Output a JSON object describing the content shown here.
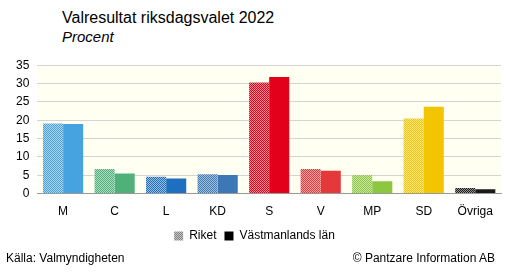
{
  "chart_data": {
    "type": "bar",
    "title": "Valresultat riksdagsvalet 2022",
    "subtitle": "Procent",
    "categories": [
      "M",
      "C",
      "L",
      "KD",
      "S",
      "V",
      "MP",
      "SD",
      "Övriga"
    ],
    "series": [
      {
        "name": "Riket",
        "color": "#808080",
        "colors": [
          "#46a3e0",
          "#4fb07a",
          "#1f6fc0",
          "#3b78b5",
          "#e2001a",
          "#e5383b",
          "#8dc63f",
          "#f2c500",
          "#1a1a1a"
        ],
        "values": [
          19.1,
          6.7,
          4.6,
          5.3,
          30.3,
          6.7,
          5.1,
          20.5,
          1.5
        ]
      },
      {
        "name": "Västmanlands län",
        "color": "#000000",
        "colors": [
          "#46a3e0",
          "#4fb07a",
          "#1f6fc0",
          "#3b78b5",
          "#e2001a",
          "#e5383b",
          "#8dc63f",
          "#f2c500",
          "#1a1a1a"
        ],
        "values": [
          19.0,
          5.5,
          4.1,
          5.1,
          31.8,
          6.2,
          3.4,
          23.7,
          1.2
        ]
      }
    ],
    "ylim": [
      0,
      35
    ],
    "yticks": [
      0,
      5,
      10,
      15,
      20,
      25,
      30,
      35
    ],
    "grid": true,
    "legend": "bottom",
    "source": "Källa: Valmyndigheten",
    "credit": "© Pantzare Information AB"
  }
}
